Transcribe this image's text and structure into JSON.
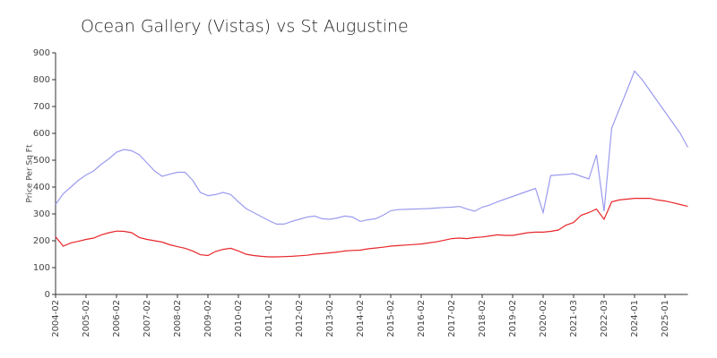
{
  "chart_data": {
    "type": "line",
    "title": "Ocean Gallery (Vistas) vs St Augustine",
    "y_label": "Price Per Sq Ft",
    "categories": [
      "2004-02",
      null,
      null,
      null,
      "2005-02",
      null,
      null,
      null,
      "2006-02",
      null,
      null,
      null,
      "2007-02",
      null,
      null,
      null,
      "2008-02",
      null,
      null,
      null,
      "2009-02",
      null,
      null,
      null,
      "2010-02",
      null,
      null,
      null,
      "2011-02",
      null,
      null,
      null,
      "2012-02",
      null,
      null,
      null,
      "2013-02",
      null,
      null,
      null,
      "2014-02",
      null,
      null,
      null,
      "2015-02",
      null,
      null,
      null,
      "2016-02",
      null,
      null,
      null,
      "2017-02",
      null,
      null,
      null,
      "2018-02",
      null,
      null,
      null,
      "2019-02",
      null,
      null,
      null,
      "2020-02",
      null,
      null,
      null,
      "2021-03",
      null,
      null,
      null,
      "2022-03",
      null,
      null,
      null,
      "2024-01",
      null,
      null,
      null,
      "2025-01",
      null,
      null,
      null
    ],
    "series": [
      {
        "color": "#9b9bef",
        "values": [
          335,
          375,
          400,
          425,
          445,
          460,
          485,
          505,
          530,
          540,
          535,
          520,
          490,
          460,
          440,
          448,
          455,
          455,
          425,
          380,
          368,
          372,
          380,
          372,
          345,
          320,
          305,
          290,
          275,
          262,
          262,
          272,
          280,
          288,
          292,
          282,
          280,
          285,
          292,
          288,
          272,
          278,
          282,
          295,
          312,
          316,
          317,
          318,
          319,
          320,
          322,
          324,
          325,
          328,
          318,
          310,
          325,
          333,
          345,
          355,
          365,
          375,
          385,
          395,
          305,
          443,
          445,
          447,
          450,
          440,
          430,
          520,
          310,
          620,
          690,
          760,
          832,
          800,
          760,
          720,
          680,
          640,
          600,
          548
        ]
      },
      {
        "color": "#e8262a",
        "values": [
          215,
          180,
          192,
          198,
          205,
          210,
          222,
          230,
          236,
          235,
          230,
          212,
          205,
          200,
          195,
          185,
          178,
          172,
          162,
          148,
          145,
          160,
          168,
          172,
          162,
          150,
          145,
          142,
          140,
          140,
          141,
          142,
          144,
          146,
          150,
          152,
          155,
          158,
          162,
          164,
          165,
          170,
          173,
          176,
          180,
          182,
          184,
          186,
          188,
          192,
          196,
          202,
          208,
          210,
          208,
          212,
          214,
          218,
          222,
          220,
          220,
          225,
          230,
          232,
          232,
          235,
          240,
          258,
          268,
          295,
          305,
          318,
          280,
          345,
          352,
          355,
          358,
          358,
          358,
          352,
          348,
          342,
          335,
          328
        ]
      }
    ],
    "ylim": [
      0,
      900
    ],
    "yticks": [
      0,
      100,
      200,
      300,
      400,
      500,
      600,
      700,
      800,
      900
    ]
  }
}
